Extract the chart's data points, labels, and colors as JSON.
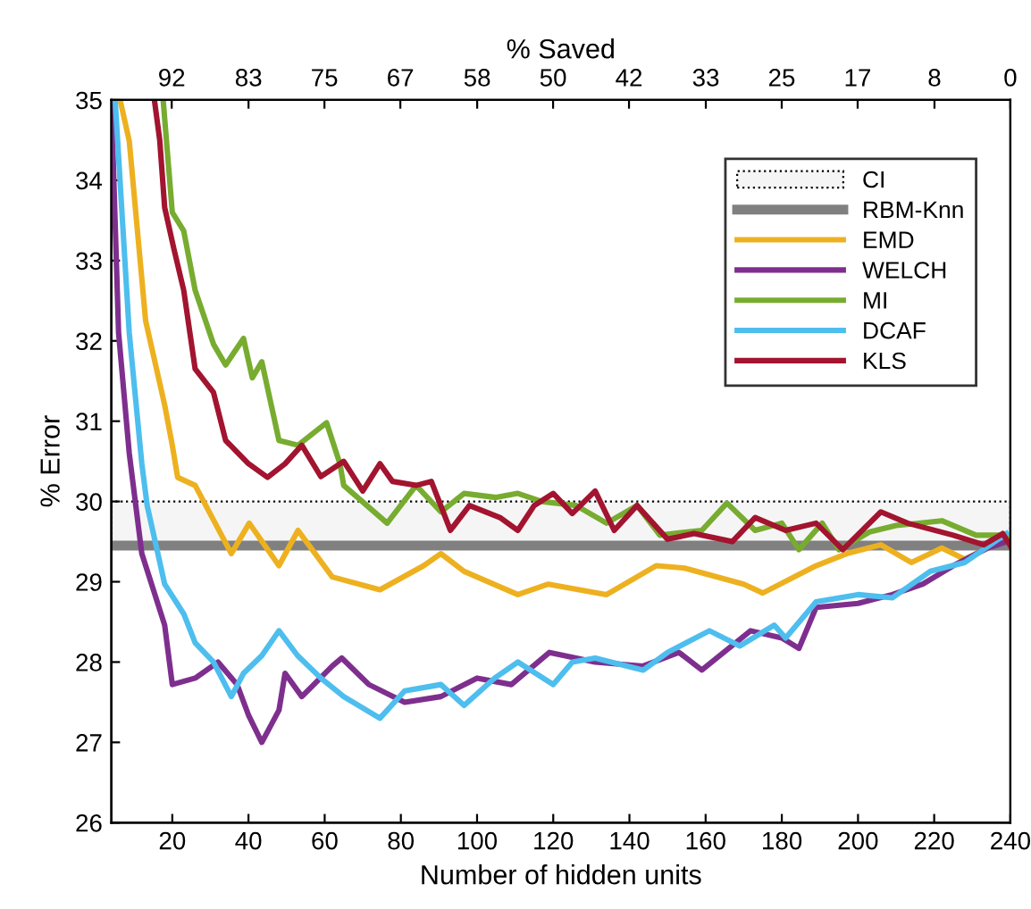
{
  "chart_data": {
    "type": "line",
    "xlabel": "Number of hidden units",
    "ylabel": "% Error",
    "x2label": "% Saved",
    "xlim": [
      4,
      240
    ],
    "xticks": [
      20,
      40,
      60,
      80,
      100,
      120,
      140,
      160,
      180,
      200,
      220,
      240
    ],
    "ylim": [
      26,
      35
    ],
    "yticks": [
      26,
      27,
      28,
      29,
      30,
      31,
      32,
      33,
      34,
      35
    ],
    "x2lim": [
      98.3,
      0
    ],
    "x2ticks": [
      {
        "value": 91.7,
        "label": "92"
      },
      {
        "value": 83.3,
        "label": "83"
      },
      75,
      {
        "value": 66.7,
        "label": "67"
      },
      {
        "value": 58.3,
        "label": "58"
      },
      50,
      {
        "value": 41.7,
        "label": "42"
      },
      {
        "value": 33.3,
        "label": "33"
      },
      25,
      {
        "value": 16.7,
        "label": "17"
      },
      {
        "value": 8.3,
        "label": "8"
      },
      0
    ],
    "grid": false,
    "legend": "top right",
    "marker": "none",
    "line_style": "solid",
    "bands": [
      {
        "axis": "y",
        "from": 29.45,
        "to": 30.0,
        "label": "CI",
        "color": "#f5f5f5"
      }
    ],
    "ref_lines": [
      {
        "axis": "y",
        "value": 29.45,
        "label": "RBM-Knn",
        "color": "#808080"
      }
    ],
    "series": [
      {
        "name": "EMD",
        "color": "#edb120",
        "x": [
          6.3,
          8.7,
          13,
          18,
          20,
          21.4,
          26,
          35.5,
          40.2,
          48,
          53,
          62,
          74.5,
          86,
          90.5,
          96.6,
          110.7,
          118.7,
          134,
          147,
          154.5,
          170,
          175,
          189,
          197,
          206,
          214,
          222,
          228,
          239
        ],
        "values": [
          35,
          34.49,
          32.25,
          31.2,
          30.7,
          30.3,
          30.2,
          29.35,
          29.73,
          29.2,
          29.64,
          29.06,
          28.9,
          29.2,
          29.35,
          29.13,
          28.84,
          28.97,
          28.84,
          29.2,
          29.17,
          28.97,
          28.86,
          29.2,
          29.35,
          29.46,
          29.24,
          29.42,
          29.28,
          29.53
        ]
      },
      {
        "name": "WELCH",
        "color": "#7e2f8e",
        "x": [
          4,
          5.9,
          8.7,
          12,
          18,
          20,
          26,
          32,
          37,
          40,
          43.5,
          48,
          49.6,
          54,
          62,
          64.5,
          71.6,
          81,
          90.5,
          100,
          109,
          119,
          131,
          143.6,
          153,
          159,
          171.8,
          180,
          184.5,
          189,
          200,
          209,
          217,
          225,
          234,
          239
        ],
        "values": [
          35,
          32.1,
          30.6,
          29.35,
          28.46,
          27.72,
          27.8,
          28.0,
          27.72,
          27.34,
          27.0,
          27.4,
          27.86,
          27.57,
          27.95,
          28.05,
          27.72,
          27.5,
          27.57,
          27.8,
          27.72,
          28.12,
          28.0,
          27.95,
          28.12,
          27.9,
          28.39,
          28.3,
          28.17,
          28.68,
          28.73,
          28.84,
          28.97,
          29.2,
          29.42,
          29.5
        ]
      },
      {
        "name": "MI",
        "color": "#77ac30",
        "x": [
          17.6,
          20,
          23,
          26,
          30.8,
          34,
          38.7,
          41,
          43.5,
          48,
          53,
          60.5,
          64,
          65,
          76.4,
          84,
          90.5,
          96.6,
          105,
          110.7,
          117,
          126,
          134,
          142,
          148,
          159,
          165.6,
          173,
          180,
          184.5,
          190.6,
          195,
          203,
          210,
          222,
          231,
          239
        ],
        "values": [
          35,
          33.6,
          33.37,
          32.63,
          31.96,
          31.7,
          32.03,
          31.54,
          31.74,
          30.76,
          30.7,
          30.98,
          30.47,
          30.2,
          29.73,
          30.2,
          29.87,
          30.1,
          30.05,
          30.1,
          30.0,
          29.95,
          29.73,
          29.95,
          29.58,
          29.64,
          29.98,
          29.64,
          29.73,
          29.4,
          29.73,
          29.4,
          29.62,
          29.7,
          29.76,
          29.58,
          29.58
        ]
      },
      {
        "name": "DCAF",
        "color": "#4dbeee",
        "x": [
          5,
          8.7,
          12,
          13.4,
          18,
          23,
          26,
          30.8,
          35.5,
          38.7,
          43.5,
          48,
          52.9,
          59,
          65,
          74.5,
          81,
          90.5,
          96.6,
          104.6,
          110.7,
          120,
          125,
          131,
          143.6,
          150,
          161,
          169,
          178,
          181,
          189,
          200,
          209,
          219,
          228,
          239
        ],
        "values": [
          35,
          32.1,
          30.47,
          29.95,
          28.97,
          28.6,
          28.24,
          28.0,
          27.57,
          27.86,
          28.08,
          28.39,
          28.08,
          27.8,
          27.57,
          27.3,
          27.64,
          27.72,
          27.46,
          27.8,
          28.0,
          27.72,
          28.0,
          28.05,
          27.9,
          28.12,
          28.39,
          28.2,
          28.46,
          28.3,
          28.75,
          28.84,
          28.8,
          29.13,
          29.24,
          29.6
        ]
      },
      {
        "name": "KLS",
        "color": "#a2142f",
        "x": [
          15.3,
          16.7,
          18,
          20.4,
          23,
          26,
          30.8,
          34,
          40,
          45,
          49.6,
          54,
          59,
          65,
          70,
          74.5,
          77.8,
          84,
          88,
          93,
          98,
          106,
          110.7,
          115,
          120,
          125,
          131,
          136,
          142,
          150,
          157,
          167,
          173,
          181,
          189,
          196,
          206,
          213,
          225,
          233,
          238,
          240
        ],
        "values": [
          35,
          34.5,
          33.66,
          33.15,
          32.63,
          31.65,
          31.36,
          30.76,
          30.47,
          30.3,
          30.47,
          30.7,
          30.31,
          30.5,
          30.13,
          30.47,
          30.25,
          30.2,
          30.25,
          29.64,
          29.95,
          29.8,
          29.64,
          29.95,
          30.1,
          29.85,
          30.13,
          29.64,
          29.95,
          29.53,
          29.6,
          29.5,
          29.8,
          29.64,
          29.73,
          29.4,
          29.87,
          29.73,
          29.58,
          29.46,
          29.6,
          29.45
        ]
      }
    ]
  }
}
